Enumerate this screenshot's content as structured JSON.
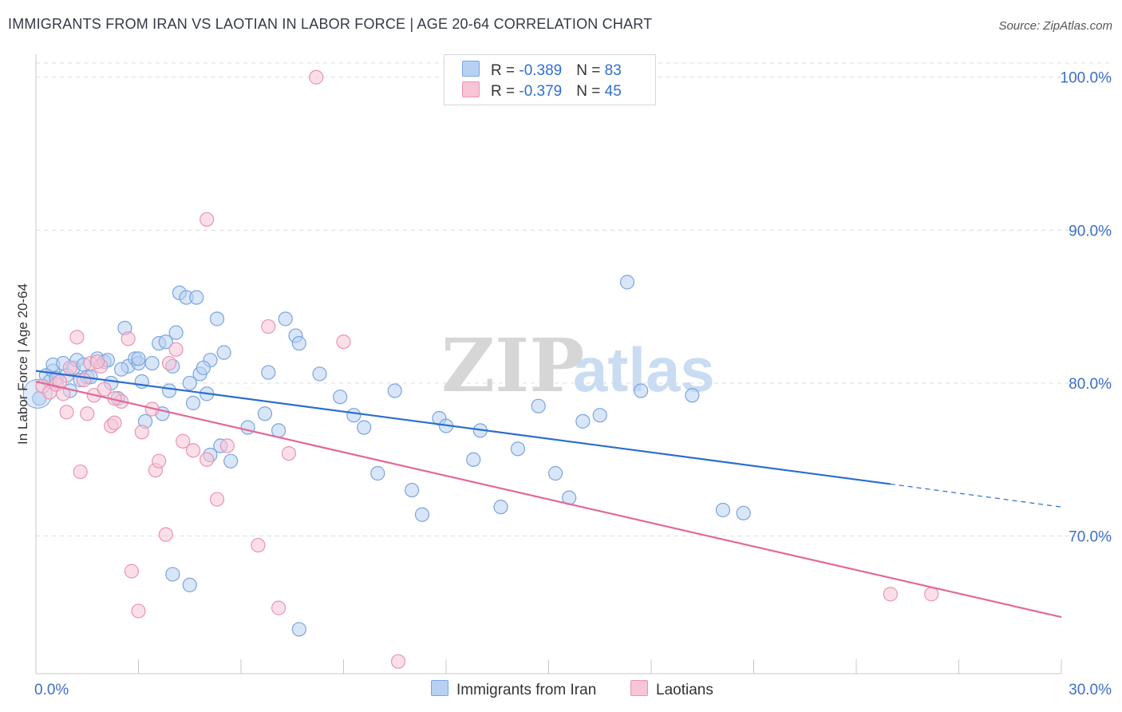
{
  "title": "IMMIGRANTS FROM IRAN VS LAOTIAN IN LABOR FORCE | AGE 20-64 CORRELATION CHART",
  "source": "Source: ZipAtlas.com",
  "legend": {
    "rows": [
      {
        "r_label": "R = ",
        "r_value": "-0.389",
        "n_label": "N = ",
        "n_value": "83"
      },
      {
        "r_label": "R = ",
        "r_value": "-0.379",
        "n_label": "N = ",
        "n_value": "45"
      }
    ]
  },
  "colors": {
    "blue_fill": "#b8d1f3",
    "blue_stroke": "#7aa5df",
    "blue_line": "#2a6dd0",
    "pink_fill": "#f8c5d6",
    "pink_stroke": "#eb93b1",
    "pink_line": "#e2689a",
    "tick_label": "#3d6fc7"
  },
  "chart_data": {
    "type": "scatter",
    "title": "IMMIGRANTS FROM IRAN VS LAOTIAN IN LABOR FORCE | AGE 20-64 CORRELATION CHART",
    "xlabel": "",
    "ylabel": "In Labor Force | Age 20-64",
    "xlim": [
      0,
      30
    ],
    "ylim": [
      61,
      101.5
    ],
    "x_tick_labels": [
      "0.0%",
      "30.0%"
    ],
    "y_ticks": [
      70,
      80,
      90,
      100
    ],
    "y_tick_labels": [
      "70.0%",
      "80.0%",
      "90.0%",
      "100.0%"
    ],
    "grid": true,
    "legend_position": "top-center",
    "watermark": {
      "text1": "ZIP",
      "text2": "atlas"
    },
    "series": [
      {
        "name": "Immigrants from Iran",
        "color": "blue",
        "stats": {
          "R": -0.389,
          "N": 83
        },
        "trend": {
          "x0": 0,
          "y0": 80.8,
          "x1": 25,
          "y1": 73.4,
          "dash_to_x": 30,
          "dash_to_y": 71.9
        },
        "points": [
          [
            0.1,
            79.0
          ],
          [
            0.3,
            80.5
          ],
          [
            0.4,
            80.1
          ],
          [
            0.5,
            80.8
          ],
          [
            0.6,
            80.3
          ],
          [
            0.5,
            81.2
          ],
          [
            0.8,
            81.3
          ],
          [
            0.9,
            80.5
          ],
          [
            1.0,
            79.5
          ],
          [
            1.1,
            81.0
          ],
          [
            1.2,
            81.5
          ],
          [
            1.3,
            80.2
          ],
          [
            1.4,
            81.2
          ],
          [
            1.5,
            80.4
          ],
          [
            1.6,
            80.4
          ],
          [
            1.8,
            81.6
          ],
          [
            2.0,
            81.4
          ],
          [
            2.1,
            81.5
          ],
          [
            2.2,
            80.0
          ],
          [
            2.4,
            79.0
          ],
          [
            2.6,
            83.6
          ],
          [
            2.7,
            81.1
          ],
          [
            2.9,
            81.6
          ],
          [
            3.0,
            81.3
          ],
          [
            3.1,
            80.1
          ],
          [
            3.2,
            77.5
          ],
          [
            3.4,
            81.3
          ],
          [
            3.6,
            82.6
          ],
          [
            3.7,
            78.0
          ],
          [
            3.8,
            82.7
          ],
          [
            3.9,
            79.5
          ],
          [
            4.0,
            81.1
          ],
          [
            4.1,
            83.3
          ],
          [
            4.2,
            85.9
          ],
          [
            4.4,
            85.6
          ],
          [
            4.5,
            80.0
          ],
          [
            4.6,
            78.7
          ],
          [
            4.7,
            85.6
          ],
          [
            4.8,
            80.6
          ],
          [
            5.0,
            79.3
          ],
          [
            5.1,
            81.5
          ],
          [
            5.3,
            84.2
          ],
          [
            5.4,
            75.9
          ],
          [
            5.5,
            82.0
          ],
          [
            5.7,
            74.9
          ],
          [
            6.2,
            77.1
          ],
          [
            6.7,
            78.0
          ],
          [
            6.8,
            80.7
          ],
          [
            7.1,
            76.9
          ],
          [
            7.3,
            84.2
          ],
          [
            7.6,
            83.1
          ],
          [
            7.7,
            82.6
          ],
          [
            8.3,
            80.6
          ],
          [
            8.9,
            79.1
          ],
          [
            9.3,
            77.9
          ],
          [
            9.6,
            77.1
          ],
          [
            10.0,
            74.1
          ],
          [
            10.5,
            79.5
          ],
          [
            11.0,
            73.0
          ],
          [
            11.3,
            71.4
          ],
          [
            11.8,
            77.7
          ],
          [
            12.0,
            77.2
          ],
          [
            12.8,
            75.0
          ],
          [
            13.0,
            76.9
          ],
          [
            13.6,
            71.9
          ],
          [
            14.1,
            75.7
          ],
          [
            14.7,
            78.5
          ],
          [
            15.2,
            74.1
          ],
          [
            15.6,
            72.5
          ],
          [
            16.0,
            77.5
          ],
          [
            16.5,
            77.9
          ],
          [
            17.3,
            86.6
          ],
          [
            17.7,
            79.5
          ],
          [
            19.2,
            79.2
          ],
          [
            20.1,
            71.7
          ],
          [
            20.7,
            71.5
          ],
          [
            4.0,
            67.5
          ],
          [
            4.5,
            66.8
          ],
          [
            5.1,
            75.3
          ],
          [
            7.7,
            63.9
          ],
          [
            3.0,
            81.6
          ],
          [
            2.5,
            80.9
          ],
          [
            4.9,
            81.0
          ]
        ]
      },
      {
        "name": "Laotians",
        "color": "pink",
        "stats": {
          "R": -0.379,
          "N": 45
        },
        "trend": {
          "x0": 0,
          "y0": 80.1,
          "x1": 30,
          "y1": 64.7
        },
        "points": [
          [
            0.2,
            79.8
          ],
          [
            0.4,
            79.4
          ],
          [
            0.6,
            79.9
          ],
          [
            0.7,
            80.1
          ],
          [
            0.8,
            79.3
          ],
          [
            1.0,
            81.0
          ],
          [
            0.9,
            78.1
          ],
          [
            1.2,
            83.0
          ],
          [
            1.3,
            74.2
          ],
          [
            1.4,
            80.2
          ],
          [
            1.5,
            78.0
          ],
          [
            1.6,
            81.3
          ],
          [
            1.7,
            79.2
          ],
          [
            1.9,
            81.1
          ],
          [
            2.0,
            79.6
          ],
          [
            2.2,
            77.2
          ],
          [
            2.3,
            77.4
          ],
          [
            2.5,
            78.8
          ],
          [
            2.7,
            82.9
          ],
          [
            2.8,
            67.7
          ],
          [
            3.0,
            65.1
          ],
          [
            3.1,
            76.8
          ],
          [
            3.5,
            74.3
          ],
          [
            3.6,
            74.9
          ],
          [
            3.8,
            70.1
          ],
          [
            3.9,
            81.3
          ],
          [
            4.1,
            82.2
          ],
          [
            4.3,
            76.2
          ],
          [
            4.6,
            75.6
          ],
          [
            5.0,
            90.7
          ],
          [
            5.3,
            72.4
          ],
          [
            5.6,
            75.9
          ],
          [
            6.5,
            69.4
          ],
          [
            6.8,
            83.7
          ],
          [
            7.1,
            65.3
          ],
          [
            7.4,
            75.4
          ],
          [
            8.2,
            100.0
          ],
          [
            9.0,
            82.7
          ],
          [
            10.6,
            61.8
          ],
          [
            25.0,
            66.2
          ],
          [
            26.2,
            66.2
          ],
          [
            1.8,
            81.4
          ],
          [
            2.3,
            79.0
          ],
          [
            3.4,
            78.3
          ],
          [
            5.0,
            75.0
          ]
        ]
      }
    ]
  },
  "bottom_legend": [
    "Immigrants from Iran",
    "Laotians"
  ]
}
